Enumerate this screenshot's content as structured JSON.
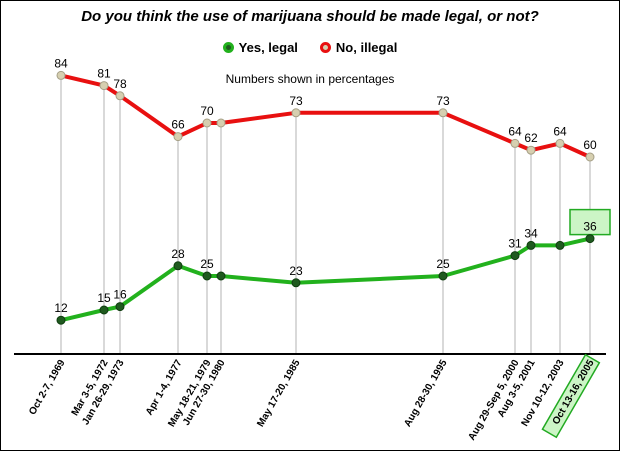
{
  "chart_data": {
    "type": "line",
    "title": "Do you think the use of marijuana should be made legal, or not?",
    "subtitle": "Numbers shown in percentages",
    "categories": [
      "Oct 2-7, 1969",
      "Mar 3-5, 1972",
      "Jan 26-29, 1973",
      "Apr 1-4, 1977",
      "May 18-21, 1979",
      "Jun 27-30, 1980",
      "May 17-20, 1985",
      "Aug 28-30, 1995",
      "Aug 29-Sep 5, 2000",
      "Aug 3-5, 2001",
      "Nov 10-12, 2003",
      "Oct 13-16, 2005"
    ],
    "series": [
      {
        "name": "Yes, legal",
        "color": "#22b11d",
        "values": [
          12,
          15,
          16,
          28,
          25,
          25,
          23,
          25,
          31,
          34,
          34,
          36
        ]
      },
      {
        "name": "No, illegal",
        "color": "#e81010",
        "values": [
          84,
          81,
          78,
          66,
          70,
          70,
          73,
          73,
          64,
          62,
          64,
          60
        ]
      }
    ],
    "value_labels": {
      "Yes, legal": [
        "12",
        "15",
        "16",
        "28",
        "25",
        "",
        "23",
        "25",
        "31",
        "34",
        "",
        "36"
      ],
      "No, illegal": [
        "84",
        "81",
        "78",
        "66",
        "70",
        "",
        "73",
        "73",
        "64",
        "62",
        "64",
        "60"
      ]
    },
    "highlight_index": 11,
    "ylim": [
      0,
      100
    ],
    "legend_position": "top-center",
    "grid": false,
    "colors": {
      "yes_dot": "#1f5a1f",
      "no_dot": "#d6cfb0",
      "droplines": "#b3b3b3",
      "highlight": "#22aa22",
      "highlight_fill": "#ccf5c6"
    }
  }
}
